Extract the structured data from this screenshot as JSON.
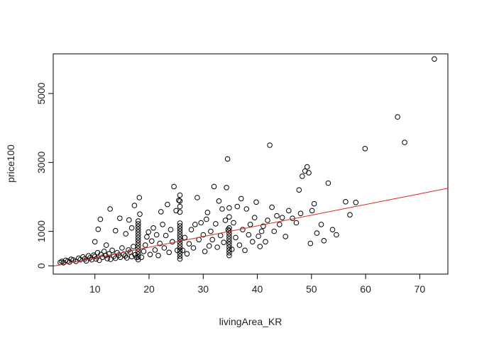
{
  "chart_data": {
    "type": "scatter",
    "title": "",
    "xlabel": "livingArea_KR",
    "ylabel": "price100",
    "xlim": [
      2.3,
      75.2
    ],
    "ylim": [
      -240,
      6150
    ],
    "x_ticks": [
      10,
      20,
      30,
      40,
      50,
      60,
      70
    ],
    "y_ticks": [
      0,
      1000,
      3000,
      5000
    ],
    "point_color": "#000000",
    "fit_line_color": "#dd2222",
    "grid": false,
    "legend": "none",
    "fit_line": {
      "intercept": -80,
      "slope": 31
    },
    "points": [
      [
        3.6,
        100
      ],
      [
        3.9,
        130
      ],
      [
        4.2,
        90
      ],
      [
        4.6,
        160
      ],
      [
        5.0,
        140
      ],
      [
        5.3,
        110
      ],
      [
        5.6,
        190
      ],
      [
        6.0,
        170
      ],
      [
        6.5,
        130
      ],
      [
        7.0,
        220
      ],
      [
        7.3,
        180
      ],
      [
        7.8,
        260
      ],
      [
        8.1,
        200
      ],
      [
        8.4,
        140
      ],
      [
        8.8,
        290
      ],
      [
        9.1,
        230
      ],
      [
        9.4,
        180
      ],
      [
        9.8,
        310
      ],
      [
        10.0,
        270
      ],
      [
        10.2,
        200
      ],
      [
        10.5,
        380
      ],
      [
        10.8,
        160
      ],
      [
        11.1,
        330
      ],
      [
        11.4,
        250
      ],
      [
        11.7,
        420
      ],
      [
        12.0,
        300
      ],
      [
        12.3,
        210
      ],
      [
        12.6,
        350
      ],
      [
        12.9,
        190
      ],
      [
        13.2,
        450
      ],
      [
        13.5,
        280
      ],
      [
        13.8,
        220
      ],
      [
        14.1,
        380
      ],
      [
        14.4,
        310
      ],
      [
        14.7,
        250
      ],
      [
        15.0,
        520
      ],
      [
        15.3,
        340
      ],
      [
        15.6,
        290
      ],
      [
        15.9,
        230
      ],
      [
        16.2,
        460
      ],
      [
        16.5,
        400
      ],
      [
        16.8,
        270
      ],
      [
        17.1,
        560
      ],
      [
        17.4,
        320
      ],
      [
        17.7,
        240
      ],
      [
        10.0,
        700
      ],
      [
        10.6,
        1060
      ],
      [
        11.0,
        1350
      ],
      [
        12.1,
        600
      ],
      [
        12.8,
        1650
      ],
      [
        13.8,
        1020
      ],
      [
        14.6,
        1380
      ],
      [
        15.7,
        930
      ],
      [
        16.3,
        1330
      ],
      [
        16.8,
        1100
      ],
      [
        17.3,
        1750
      ],
      [
        18.2,
        1980
      ],
      [
        18.3,
        1500
      ],
      [
        18.0,
        180
      ],
      [
        18.0,
        260
      ],
      [
        18.0,
        340
      ],
      [
        18.0,
        420
      ],
      [
        18.0,
        500
      ],
      [
        18.0,
        580
      ],
      [
        18.0,
        660
      ],
      [
        18.0,
        740
      ],
      [
        18.0,
        820
      ],
      [
        18.0,
        900
      ],
      [
        18.0,
        980
      ],
      [
        18.0,
        1060
      ],
      [
        18.0,
        1140
      ],
      [
        18.0,
        1220
      ],
      [
        18.0,
        1300
      ],
      [
        18.6,
        250
      ],
      [
        19.0,
        420
      ],
      [
        19.3,
        600
      ],
      [
        19.6,
        840
      ],
      [
        19.9,
        980
      ],
      [
        20.2,
        330
      ],
      [
        20.5,
        720
      ],
      [
        20.8,
        1100
      ],
      [
        21.1,
        460
      ],
      [
        21.4,
        900
      ],
      [
        21.7,
        300
      ],
      [
        22.0,
        650
      ],
      [
        22.2,
        1570
      ],
      [
        22.5,
        1200
      ],
      [
        22.8,
        520
      ],
      [
        23.1,
        880
      ],
      [
        23.4,
        1780
      ],
      [
        23.7,
        390
      ],
      [
        24.0,
        1050
      ],
      [
        24.3,
        700
      ],
      [
        24.6,
        2300
      ],
      [
        25.0,
        1600
      ],
      [
        25.2,
        450
      ],
      [
        25.5,
        1900
      ],
      [
        25.7,
        200
      ],
      [
        25.7,
        280
      ],
      [
        25.7,
        360
      ],
      [
        25.7,
        440
      ],
      [
        25.7,
        520
      ],
      [
        25.7,
        600
      ],
      [
        25.7,
        680
      ],
      [
        25.7,
        760
      ],
      [
        25.7,
        840
      ],
      [
        25.7,
        920
      ],
      [
        25.7,
        1000
      ],
      [
        25.7,
        1080
      ],
      [
        25.7,
        1160
      ],
      [
        25.7,
        1240
      ],
      [
        25.7,
        1560
      ],
      [
        25.7,
        1720
      ],
      [
        25.7,
        1880
      ],
      [
        25.7,
        2050
      ],
      [
        26.2,
        450
      ],
      [
        26.6,
        820
      ],
      [
        27.0,
        350
      ],
      [
        27.4,
        640
      ],
      [
        27.8,
        1050
      ],
      [
        28.2,
        520
      ],
      [
        28.5,
        1200
      ],
      [
        28.9,
        1980
      ],
      [
        29.2,
        760
      ],
      [
        29.6,
        1250
      ],
      [
        30.0,
        900
      ],
      [
        30.3,
        420
      ],
      [
        30.6,
        1350
      ],
      [
        30.8,
        1550
      ],
      [
        31.1,
        580
      ],
      [
        31.4,
        1000
      ],
      [
        31.7,
        760
      ],
      [
        32.0,
        2300
      ],
      [
        32.3,
        1220
      ],
      [
        32.6,
        540
      ],
      [
        32.9,
        1880
      ],
      [
        33.2,
        880
      ],
      [
        33.5,
        1650
      ],
      [
        33.8,
        680
      ],
      [
        34.1,
        1320
      ],
      [
        34.3,
        2270
      ],
      [
        34.5,
        3100
      ],
      [
        34.6,
        1050
      ],
      [
        34.8,
        300
      ],
      [
        34.8,
        380
      ],
      [
        34.8,
        460
      ],
      [
        34.8,
        540
      ],
      [
        34.8,
        620
      ],
      [
        34.8,
        700
      ],
      [
        34.8,
        780
      ],
      [
        34.8,
        860
      ],
      [
        34.8,
        940
      ],
      [
        34.8,
        1020
      ],
      [
        34.8,
        1100
      ],
      [
        34.8,
        1420
      ],
      [
        34.8,
        1680
      ],
      [
        35.3,
        480
      ],
      [
        35.6,
        1250
      ],
      [
        36.0,
        820
      ],
      [
        36.3,
        1720
      ],
      [
        36.7,
        600
      ],
      [
        37.0,
        1950
      ],
      [
        37.3,
        1050
      ],
      [
        37.7,
        450
      ],
      [
        38.0,
        1650
      ],
      [
        38.4,
        900
      ],
      [
        38.7,
        1200
      ],
      [
        39.1,
        700
      ],
      [
        39.5,
        1400
      ],
      [
        39.8,
        1850
      ],
      [
        40.2,
        860
      ],
      [
        40.5,
        560
      ],
      [
        40.8,
        1000
      ],
      [
        41.1,
        1150
      ],
      [
        41.5,
        700
      ],
      [
        41.9,
        1320
      ],
      [
        42.3,
        3500
      ],
      [
        42.7,
        1700
      ],
      [
        43.1,
        1000
      ],
      [
        43.6,
        1450
      ],
      [
        44.1,
        1200
      ],
      [
        44.6,
        1400
      ],
      [
        45.2,
        850
      ],
      [
        45.8,
        1600
      ],
      [
        46.5,
        1380
      ],
      [
        47.2,
        1250
      ],
      [
        47.7,
        2200
      ],
      [
        48.0,
        1520
      ],
      [
        48.3,
        2600
      ],
      [
        48.8,
        2750
      ],
      [
        49.2,
        2870
      ],
      [
        49.5,
        2700
      ],
      [
        49.8,
        650
      ],
      [
        50.1,
        1600
      ],
      [
        50.5,
        1800
      ],
      [
        51.0,
        950
      ],
      [
        51.8,
        1200
      ],
      [
        52.3,
        730
      ],
      [
        53.1,
        2400
      ],
      [
        53.9,
        1050
      ],
      [
        54.6,
        900
      ],
      [
        56.3,
        1860
      ],
      [
        57.1,
        1480
      ],
      [
        58.2,
        1840
      ],
      [
        59.9,
        3400
      ],
      [
        65.9,
        4320
      ],
      [
        67.2,
        3580
      ],
      [
        72.7,
        6000
      ]
    ]
  }
}
